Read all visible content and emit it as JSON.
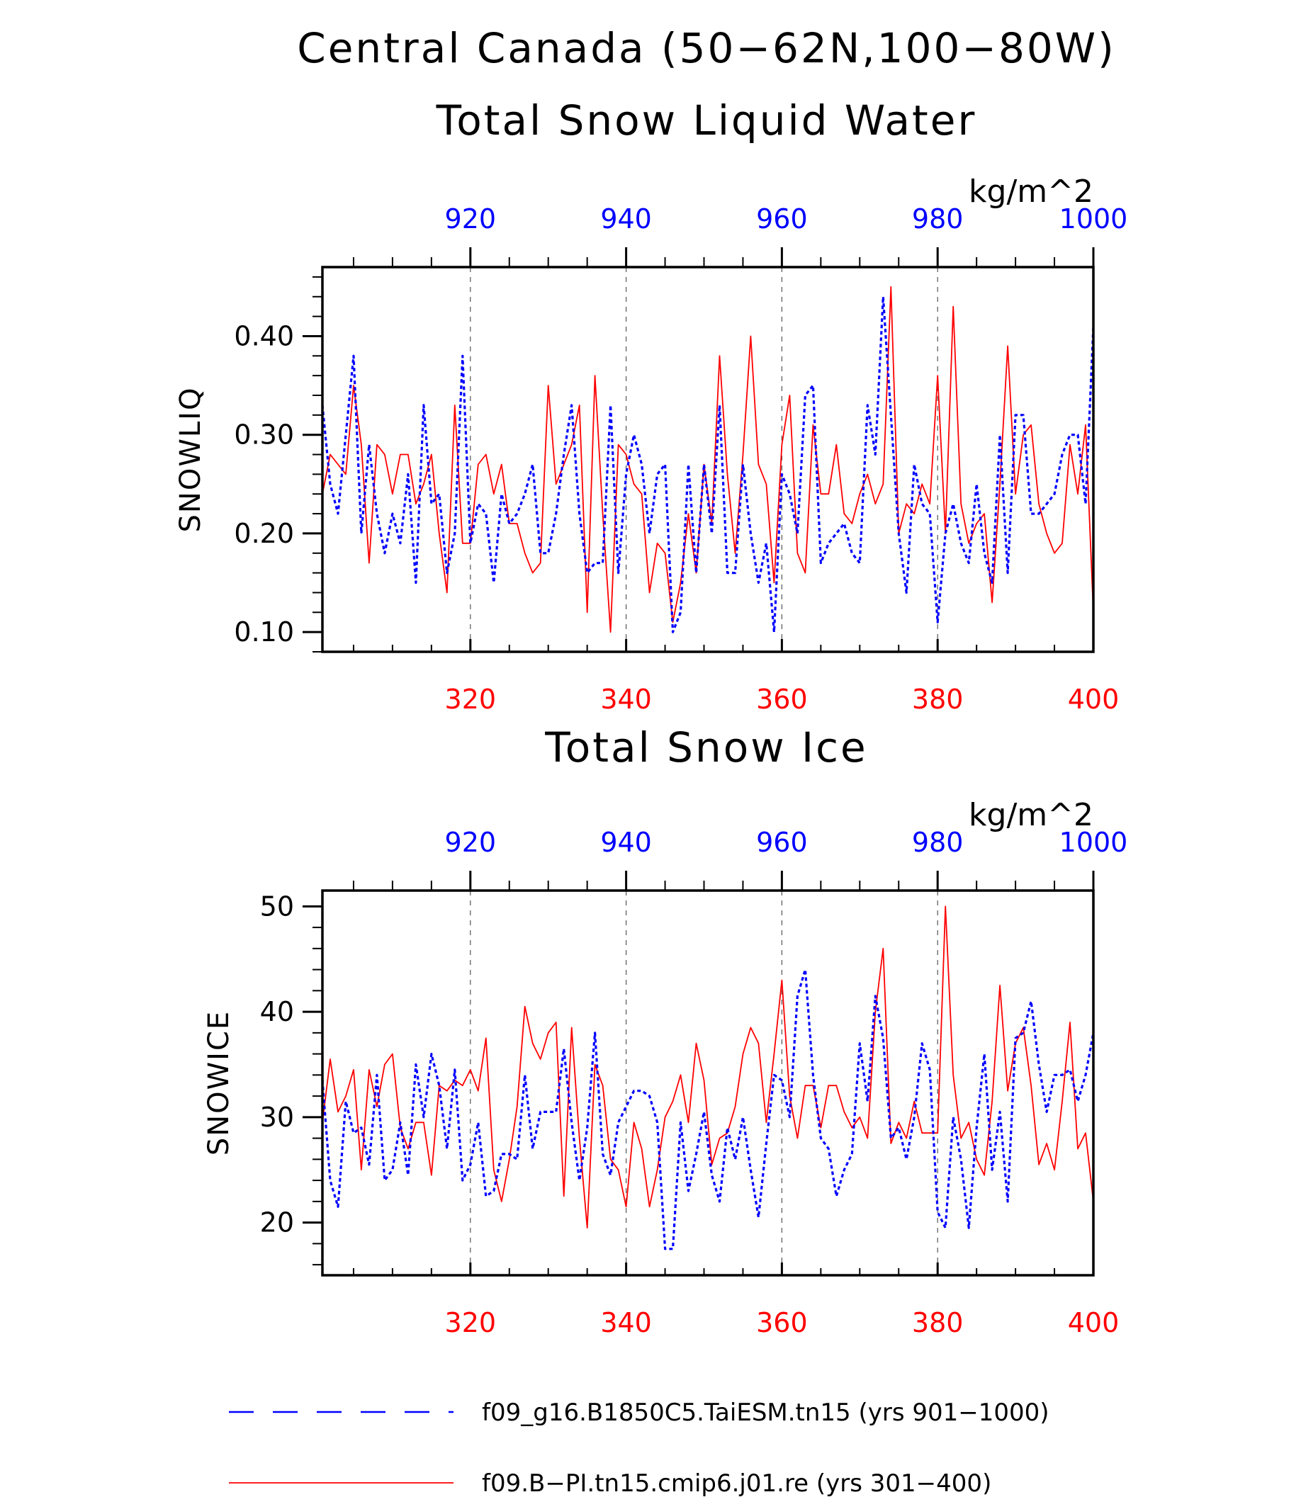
{
  "figure": {
    "title": "Central Canada (50−62N,100−80W)"
  },
  "colors": {
    "series_a": "#0000ff",
    "series_b": "#ff0000",
    "axis": "#000000",
    "grid": "#555555"
  },
  "legend": [
    {
      "label": "f09_g16.B1850C5.TaiESM.tn15 (yrs 901−1000)",
      "color": "#0000ff",
      "style": "dashed"
    },
    {
      "label": "f09.B−PI.tn15.cmip6.j01.re (yrs 301−400)",
      "color": "#ff0000",
      "style": "solid"
    }
  ],
  "chart_data": [
    {
      "type": "line",
      "title": "Total Snow Liquid Water",
      "ylabel": "SNOWLIQ",
      "units": "kg/m^2",
      "ylim": [
        0.08,
        0.47
      ],
      "yticks": [
        0.1,
        0.2,
        0.3,
        0.4
      ],
      "ytick_labels": [
        "0.10",
        "0.20",
        "0.30",
        "0.40"
      ],
      "bottom_axis": {
        "range": [
          301,
          400
        ],
        "ticks": [
          320,
          340,
          360,
          380,
          400
        ],
        "labels": [
          "320",
          "340",
          "360",
          "380",
          "400"
        ],
        "color": "#ff0000"
      },
      "top_axis": {
        "range": [
          901,
          1000
        ],
        "ticks": [
          920,
          940,
          960,
          980,
          1000
        ],
        "labels": [
          "920",
          "940",
          "960",
          "980",
          "1000"
        ],
        "color": "#0000ff"
      },
      "grid": "vertical dashed",
      "series": [
        {
          "color": "#ff0000",
          "style": "solid",
          "axis": "bottom",
          "values": [
            0.24,
            0.28,
            0.27,
            0.26,
            0.35,
            0.29,
            0.17,
            0.29,
            0.28,
            0.24,
            0.28,
            0.28,
            0.23,
            0.25,
            0.28,
            0.2,
            0.14,
            0.33,
            0.19,
            0.19,
            0.27,
            0.28,
            0.24,
            0.27,
            0.21,
            0.21,
            0.18,
            0.16,
            0.17,
            0.35,
            0.25,
            0.27,
            0.29,
            0.33,
            0.12,
            0.36,
            0.22,
            0.1,
            0.29,
            0.28,
            0.25,
            0.24,
            0.14,
            0.19,
            0.18,
            0.11,
            0.15,
            0.22,
            0.16,
            0.27,
            0.21,
            0.38,
            0.26,
            0.18,
            0.28,
            0.4,
            0.27,
            0.25,
            0.15,
            0.29,
            0.34,
            0.18,
            0.16,
            0.31,
            0.24,
            0.24,
            0.29,
            0.22,
            0.21,
            0.24,
            0.26,
            0.23,
            0.25,
            0.45,
            0.2,
            0.23,
            0.22,
            0.25,
            0.23,
            0.36,
            0.2,
            0.43,
            0.23,
            0.19,
            0.21,
            0.22,
            0.13,
            0.25,
            0.39,
            0.24,
            0.3,
            0.31,
            0.23,
            0.2,
            0.18,
            0.19,
            0.29,
            0.24,
            0.31,
            0.12
          ]
        },
        {
          "color": "#0000ff",
          "style": "dashed",
          "axis": "top",
          "values": [
            0.33,
            0.25,
            0.22,
            0.3,
            0.38,
            0.2,
            0.29,
            0.22,
            0.18,
            0.22,
            0.19,
            0.26,
            0.15,
            0.33,
            0.23,
            0.24,
            0.16,
            0.2,
            0.38,
            0.19,
            0.23,
            0.22,
            0.15,
            0.24,
            0.21,
            0.22,
            0.24,
            0.27,
            0.18,
            0.18,
            0.22,
            0.28,
            0.33,
            0.22,
            0.16,
            0.17,
            0.17,
            0.33,
            0.16,
            0.26,
            0.3,
            0.27,
            0.2,
            0.26,
            0.27,
            0.1,
            0.12,
            0.27,
            0.16,
            0.27,
            0.2,
            0.33,
            0.16,
            0.16,
            0.27,
            0.2,
            0.15,
            0.19,
            0.1,
            0.26,
            0.24,
            0.2,
            0.34,
            0.35,
            0.17,
            0.19,
            0.2,
            0.21,
            0.18,
            0.17,
            0.33,
            0.28,
            0.44,
            0.32,
            0.2,
            0.14,
            0.27,
            0.23,
            0.22,
            0.11,
            0.2,
            0.23,
            0.19,
            0.17,
            0.25,
            0.18,
            0.15,
            0.3,
            0.16,
            0.32,
            0.32,
            0.22,
            0.22,
            0.23,
            0.24,
            0.28,
            0.3,
            0.3,
            0.23,
            0.41
          ]
        }
      ]
    },
    {
      "type": "line",
      "title": "Total Snow Ice",
      "ylabel": "SNOWICE",
      "units": "kg/m^2",
      "ylim": [
        15,
        51.5
      ],
      "yticks": [
        20,
        30,
        40,
        50
      ],
      "ytick_labels": [
        "20",
        "30",
        "40",
        "50"
      ],
      "bottom_axis": {
        "range": [
          301,
          400
        ],
        "ticks": [
          320,
          340,
          360,
          380,
          400
        ],
        "labels": [
          "320",
          "340",
          "360",
          "380",
          "400"
        ],
        "color": "#ff0000"
      },
      "top_axis": {
        "range": [
          901,
          1000
        ],
        "ticks": [
          920,
          940,
          960,
          980,
          1000
        ],
        "labels": [
          "920",
          "940",
          "960",
          "980",
          "1000"
        ],
        "color": "#0000ff"
      },
      "grid": "vertical dashed",
      "series": [
        {
          "color": "#ff0000",
          "style": "solid",
          "axis": "bottom",
          "values": [
            29.5,
            35.5,
            30.5,
            32,
            34.5,
            25,
            34.5,
            31,
            35,
            36,
            29,
            27,
            29.5,
            29.5,
            24.5,
            33,
            32.5,
            33.5,
            33,
            34.5,
            32.5,
            37.5,
            25,
            22,
            26,
            31,
            40.5,
            37,
            35.5,
            38,
            39,
            22.5,
            38.5,
            28,
            19.5,
            35,
            33,
            26,
            25,
            21.5,
            29.5,
            27,
            21.5,
            25,
            30,
            31.5,
            34,
            29.5,
            37,
            33.5,
            25.5,
            28,
            28.5,
            31,
            36,
            38.5,
            37,
            29.5,
            36,
            43,
            32,
            28,
            33,
            33,
            29,
            33,
            33,
            30.5,
            29,
            30,
            28,
            40,
            46,
            27.5,
            29.5,
            28,
            31.5,
            28.5,
            28.5,
            28.5,
            50,
            34,
            28,
            29.5,
            26,
            24.5,
            31.5,
            42.5,
            32.5,
            37,
            38.5,
            33,
            25.5,
            27.5,
            25,
            31.5,
            39,
            27,
            28.5,
            22
          ]
        },
        {
          "color": "#0000ff",
          "style": "dashed",
          "axis": "top",
          "values": [
            33.5,
            24,
            21.5,
            31.5,
            28.5,
            29,
            25.5,
            34,
            24,
            25,
            29.5,
            24.5,
            35,
            30,
            36,
            33,
            27,
            34.5,
            24,
            25.5,
            29.5,
            22.5,
            23,
            26.5,
            26.5,
            26,
            34,
            27,
            30.5,
            30.5,
            30.5,
            36.5,
            29.5,
            24,
            29,
            38,
            26.5,
            24.5,
            29.5,
            31,
            32.5,
            32.5,
            32,
            29.5,
            17.5,
            17.5,
            29.5,
            23,
            26.5,
            30.5,
            24.5,
            22,
            29,
            26,
            30,
            25,
            20.5,
            27.5,
            34,
            33.5,
            30,
            41.5,
            44,
            34,
            28,
            27,
            22.5,
            25,
            26.5,
            37,
            31.5,
            41.5,
            37.5,
            28,
            29,
            26,
            30,
            37,
            34.5,
            21,
            19.5,
            30,
            26,
            19.5,
            29,
            36,
            25,
            30.5,
            22,
            37.5,
            38,
            41,
            35,
            30.5,
            34,
            34,
            34.5,
            31.5,
            34,
            38
          ]
        }
      ]
    }
  ]
}
